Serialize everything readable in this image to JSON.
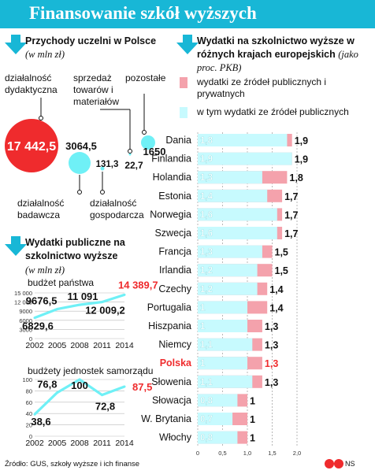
{
  "header": {
    "title": "Finansowanie szkół wyższych"
  },
  "colors": {
    "accent": "#18b7d6",
    "red": "#ef2b2d",
    "cyan": "#6ff0f6",
    "pink": "#f4a2ac",
    "light_cyan": "#c7fafe"
  },
  "section1": {
    "title": "Przychody uczelni w Polsce",
    "unit": "(w mln zł)",
    "labels": {
      "dydaktyczna": "działalność dydaktyczna",
      "sprzedaz": "sprzedaż towarów i materiałów",
      "pozostale": "pozostałe",
      "badawcza": "działalność badawcza",
      "gospodarcza": "działalność gospodarcza"
    },
    "values": {
      "dydaktyczna": "17 442,5",
      "badawcza": "3064,5",
      "gospodarcza": "131,3",
      "sprzedaz": "22,7",
      "pozostale": "1650"
    }
  },
  "section2": {
    "title": "Wydatki publiczne na szkolnictwo wyższe",
    "unit": "(w mln zł)",
    "budget_label": "budżet państwa",
    "local_label": "budżety jednostek samorządu"
  },
  "section3": {
    "title": "Wydatki na szkolnictwo wyższe w różnych krajach europejskich",
    "unit": "(jako proc. PKB)",
    "legend_total": "wydatki ze źródeł publicznych i prywatnych",
    "legend_public": "w tym wydatki ze źródeł publicznych"
  },
  "source": "Źródło: GUS, szkoły wyższe i ich finanse",
  "logo": "NS",
  "chart_data": [
    {
      "type": "bubble",
      "title": "Przychody uczelni w Polsce",
      "unit": "mln zł",
      "categories": [
        "działalność dydaktyczna",
        "działalność badawcza",
        "działalność gospodarcza",
        "sprzedaż towarów i materiałów",
        "pozostałe"
      ],
      "values": [
        17442.5,
        3064.5,
        131.3,
        22.7,
        1650
      ]
    },
    {
      "type": "line",
      "title": "budżet państwa",
      "x": [
        2002,
        2005,
        2008,
        2011,
        2014
      ],
      "x_ticks": [
        "2002",
        "2005",
        "2008",
        "2011",
        "2014"
      ],
      "values": [
        6829.6,
        9676.5,
        11091,
        12009.2,
        14389.7
      ],
      "labels": [
        "6829,6",
        "9676,5",
        "11 091",
        "12 009,2",
        "14 389,7"
      ],
      "y_ticks": [
        "0",
        "3000",
        "6000",
        "9000",
        "12 000",
        "15 000"
      ],
      "ylim": [
        0,
        15000
      ]
    },
    {
      "type": "line",
      "title": "budżety jednostek samorządu",
      "x": [
        2002,
        2005,
        2008,
        2011,
        2014
      ],
      "x_ticks": [
        "2002",
        "2005",
        "2008",
        "2011",
        "2014"
      ],
      "values": [
        38.6,
        76.8,
        100,
        72.8,
        87.5
      ],
      "labels": [
        "38,6",
        "76,8",
        "100",
        "72,8",
        "87,5"
      ],
      "y_ticks": [
        "0",
        "20",
        "40",
        "60",
        "80",
        "100"
      ],
      "ylim": [
        0,
        100
      ]
    },
    {
      "type": "bar",
      "orientation": "horizontal",
      "title": "Wydatki na szkolnictwo wyższe w różnych krajach europejskich",
      "unit": "proc. PKB",
      "categories": [
        "Dania",
        "Finlandia",
        "Holandia",
        "Estonia",
        "Norwegia",
        "Szwecja",
        "Francja",
        "Irlandia",
        "Czechy",
        "Portugalia",
        "Hiszpania",
        "Niemcy",
        "Polska",
        "Słowenia",
        "Słowacja",
        "W. Brytania",
        "Włochy"
      ],
      "highlight": "Polska",
      "series": [
        {
          "name": "wydatki ze źródeł publicznych i prywatnych",
          "values": [
            1.9,
            1.9,
            1.8,
            1.7,
            1.7,
            1.7,
            1.5,
            1.5,
            1.4,
            1.4,
            1.3,
            1.3,
            1.3,
            1.3,
            1,
            1,
            1
          ],
          "labels": [
            "1,9",
            "1,9",
            "1,8",
            "1,7",
            "1,7",
            "1,7",
            "1,5",
            "1,5",
            "1,4",
            "1,4",
            "1,3",
            "1,3",
            "1,3",
            "1,3",
            "1",
            "1",
            "1"
          ]
        },
        {
          "name": "w tym wydatki ze źródeł publicznych",
          "values": [
            1.8,
            1.9,
            1.3,
            1.4,
            1.6,
            1.6,
            1.3,
            1.2,
            1.2,
            1,
            1,
            1.1,
            1,
            1.1,
            0.8,
            0.7,
            0.8
          ],
          "labels": [
            "1,8",
            "1,9",
            "1,3",
            "1,4",
            "1,6",
            "1,6",
            "1,3",
            "1,2",
            "1,2",
            "1",
            "1",
            "1,1",
            "1",
            "1,1",
            "0,8",
            "0,7",
            "0,8"
          ]
        }
      ],
      "x_ticks": [
        "0",
        "0,5",
        "1,0",
        "1,5",
        "2,0"
      ],
      "xlim": [
        0,
        2
      ]
    }
  ]
}
